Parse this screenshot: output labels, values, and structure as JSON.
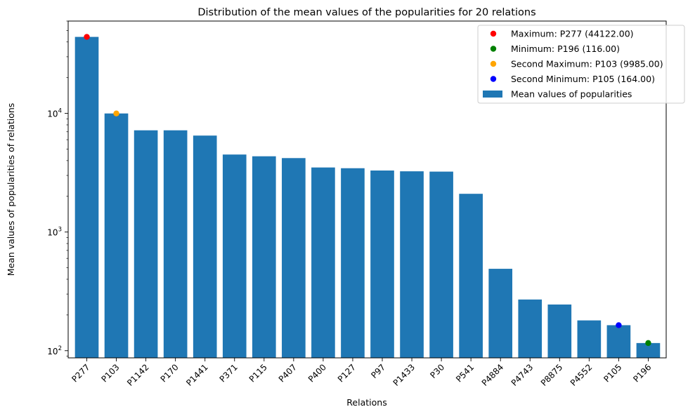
{
  "chart_data": {
    "type": "bar",
    "title": "Distribution of the mean values of the popularities for 20 relations",
    "xlabel": "Relations",
    "ylabel": "Mean values of popularities of relations",
    "yscale": "log",
    "ylim": [
      87,
      60000
    ],
    "yticks": [
      {
        "value": 100,
        "base": "10",
        "exp": "2"
      },
      {
        "value": 1000,
        "base": "10",
        "exp": "3"
      },
      {
        "value": 10000,
        "base": "10",
        "exp": "4"
      }
    ],
    "categories": [
      "P277",
      "P103",
      "P1142",
      "P170",
      "P1441",
      "P371",
      "P115",
      "P407",
      "P400",
      "P127",
      "P97",
      "P1433",
      "P30",
      "P541",
      "P4884",
      "P4743",
      "P8875",
      "P4552",
      "P105",
      "P196"
    ],
    "series": [
      {
        "name": "Mean values of popularities",
        "color": "#1f77b4",
        "values": [
          44122,
          9985,
          7200,
          7200,
          6500,
          4500,
          4350,
          4200,
          3500,
          3450,
          3300,
          3250,
          3230,
          2100,
          490,
          270,
          245,
          180,
          164,
          116
        ]
      }
    ],
    "markers": [
      {
        "label": "Maximum: P277 (44122.00)",
        "category": "P277",
        "value": 44122,
        "color": "#ff0000"
      },
      {
        "label": "Minimum: P196 (116.00)",
        "category": "P196",
        "value": 116,
        "color": "#008000"
      },
      {
        "label": "Second Maximum: P103 (9985.00)",
        "category": "P103",
        "value": 9985,
        "color": "#ffa500"
      },
      {
        "label": "Second Minimum: P105 (164.00)",
        "category": "P105",
        "value": 164,
        "color": "#0000ff"
      }
    ],
    "legend": {
      "position": "upper right",
      "entries": [
        {
          "label": "Maximum: P277 (44122.00)",
          "kind": "marker",
          "color": "#ff0000"
        },
        {
          "label": "Minimum: P196 (116.00)",
          "kind": "marker",
          "color": "#008000"
        },
        {
          "label": "Second Maximum: P103 (9985.00)",
          "kind": "marker",
          "color": "#ffa500"
        },
        {
          "label": "Second Minimum: P105 (164.00)",
          "kind": "marker",
          "color": "#0000ff"
        },
        {
          "label": "Mean values of popularities",
          "kind": "bar",
          "color": "#1f77b4"
        }
      ]
    },
    "grid": false
  }
}
